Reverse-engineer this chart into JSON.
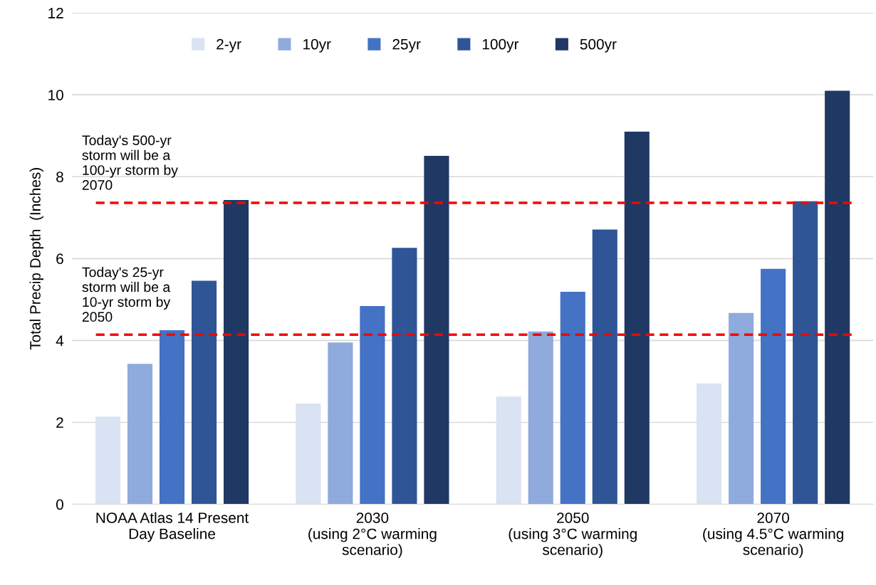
{
  "chart_data": {
    "type": "bar",
    "ylabel": "Total Precip Depth  (Inches)",
    "categories": [
      "NOAA Atlas 14 Present\nDay Baseline",
      "2030\n(using 2°C warming\nscenario)",
      "2050\n(using 3°C warming\nscenario)",
      "2070\n(using 4.5°C warming\nscenario)"
    ],
    "series": [
      {
        "name": "2-yr",
        "color": "#dae3f3",
        "values": [
          2.14,
          2.46,
          2.63,
          2.95
        ]
      },
      {
        "name": "10yr",
        "color": "#8faadc",
        "values": [
          3.43,
          3.95,
          4.22,
          4.67
        ]
      },
      {
        "name": "25yr",
        "color": "#4472c4",
        "values": [
          4.25,
          4.84,
          5.19,
          5.75
        ]
      },
      {
        "name": "100yr",
        "color": "#2f5597",
        "values": [
          5.46,
          6.26,
          6.71,
          7.4
        ]
      },
      {
        "name": "500yr",
        "color": "#203864",
        "values": [
          7.43,
          8.51,
          9.1,
          10.1
        ]
      }
    ],
    "ylim": [
      0,
      12
    ],
    "yticks": [
      0,
      2,
      4,
      6,
      8,
      10,
      12
    ],
    "grid": "y",
    "legend": "top",
    "ref_lines": [
      {
        "axis": "y",
        "value": 7.36,
        "label": "Today's 500-yr\nstorm will be a\n100-yr storm by\n2070",
        "color": "#ff0000",
        "line_style": "dashed"
      },
      {
        "axis": "y",
        "value": 4.14,
        "label": "Today's 25-yr\nstorm will be a\n10-yr storm by\n2050",
        "color": "#ff0000",
        "line_style": "dashed"
      }
    ]
  }
}
